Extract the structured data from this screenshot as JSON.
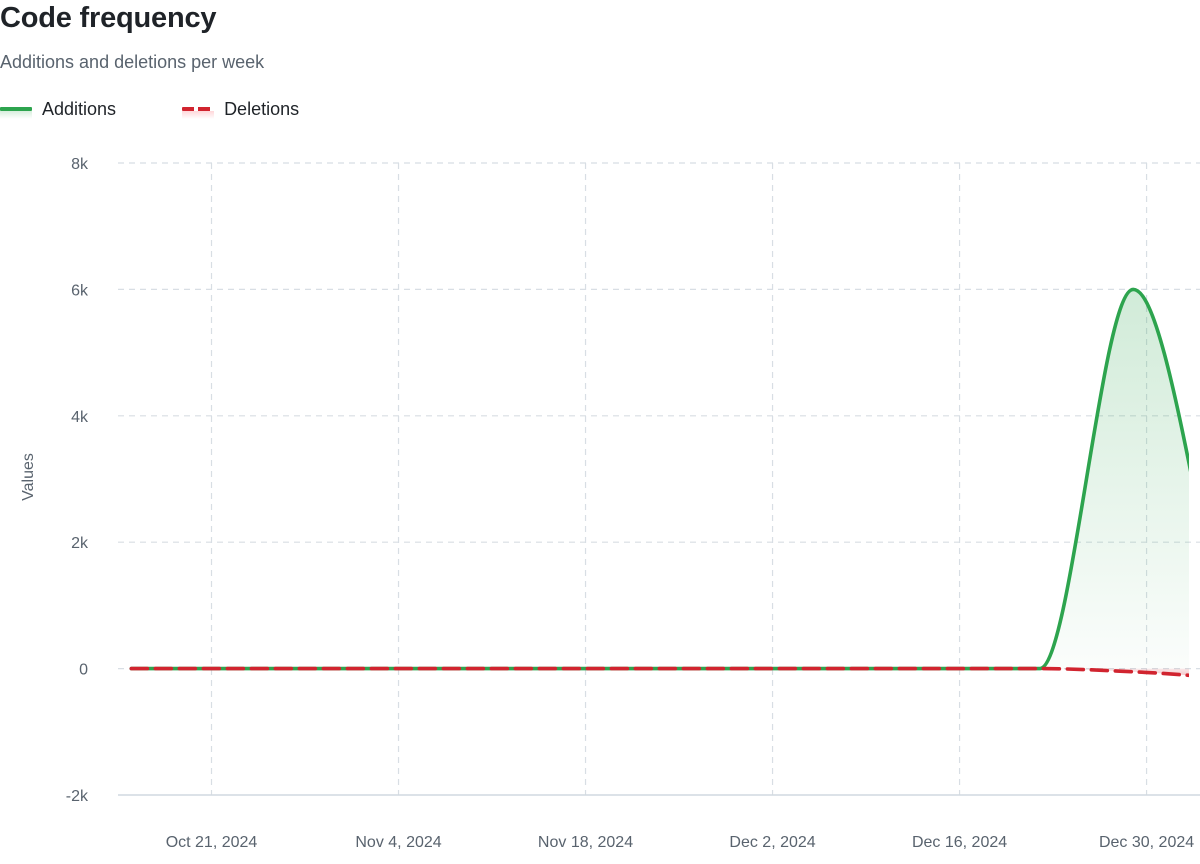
{
  "header": {
    "title": "Code frequency",
    "subtitle": "Additions and deletions per week"
  },
  "legend": [
    {
      "label": "Additions",
      "color": "#2da44e",
      "style": "solid"
    },
    {
      "label": "Deletions",
      "color": "#d1242f",
      "style": "dashed"
    }
  ],
  "chart_data": {
    "type": "area",
    "title": "Code frequency",
    "subtitle": "Additions and deletions per week",
    "ylabel": "Values",
    "xlabel": "",
    "ylim": [
      -2000,
      8000
    ],
    "yticks": [
      -2000,
      0,
      2000,
      4000,
      6000,
      8000
    ],
    "ytick_labels": [
      "-2k",
      "0",
      "2k",
      "4k",
      "6k",
      "8k"
    ],
    "xlim": [
      "2024-10-14",
      "2025-01-03"
    ],
    "xticks": [
      "2024-10-21",
      "2024-11-04",
      "2024-11-18",
      "2024-12-02",
      "2024-12-16",
      "2024-12-30"
    ],
    "xtick_labels": [
      "Oct 21, 2024",
      "Nov 4, 2024",
      "Nov 18, 2024",
      "Dec 2, 2024",
      "Dec 16, 2024",
      "Dec 30, 2024"
    ],
    "grid": true,
    "legend_position": "top-left",
    "series": [
      {
        "name": "Additions",
        "color": "#2da44e",
        "points": [
          [
            "2024-10-15",
            0
          ],
          [
            "2024-10-22",
            0
          ],
          [
            "2024-10-29",
            0
          ],
          [
            "2024-11-05",
            0
          ],
          [
            "2024-11-12",
            0
          ],
          [
            "2024-11-19",
            0
          ],
          [
            "2024-11-26",
            0
          ],
          [
            "2024-12-03",
            0
          ],
          [
            "2024-12-10",
            0
          ],
          [
            "2024-12-17",
            0
          ],
          [
            "2024-12-22",
            0
          ],
          [
            "2024-12-29",
            6000
          ],
          [
            "2025-01-05",
            500
          ]
        ]
      },
      {
        "name": "Deletions",
        "color": "#d1242f",
        "points": [
          [
            "2024-10-15",
            0
          ],
          [
            "2024-10-22",
            0
          ],
          [
            "2024-10-29",
            0
          ],
          [
            "2024-11-05",
            0
          ],
          [
            "2024-11-12",
            0
          ],
          [
            "2024-11-19",
            0
          ],
          [
            "2024-11-26",
            0
          ],
          [
            "2024-12-03",
            0
          ],
          [
            "2024-12-10",
            0
          ],
          [
            "2024-12-17",
            0
          ],
          [
            "2024-12-22",
            0
          ],
          [
            "2024-12-29",
            -50
          ],
          [
            "2025-01-05",
            -150
          ]
        ]
      }
    ]
  }
}
